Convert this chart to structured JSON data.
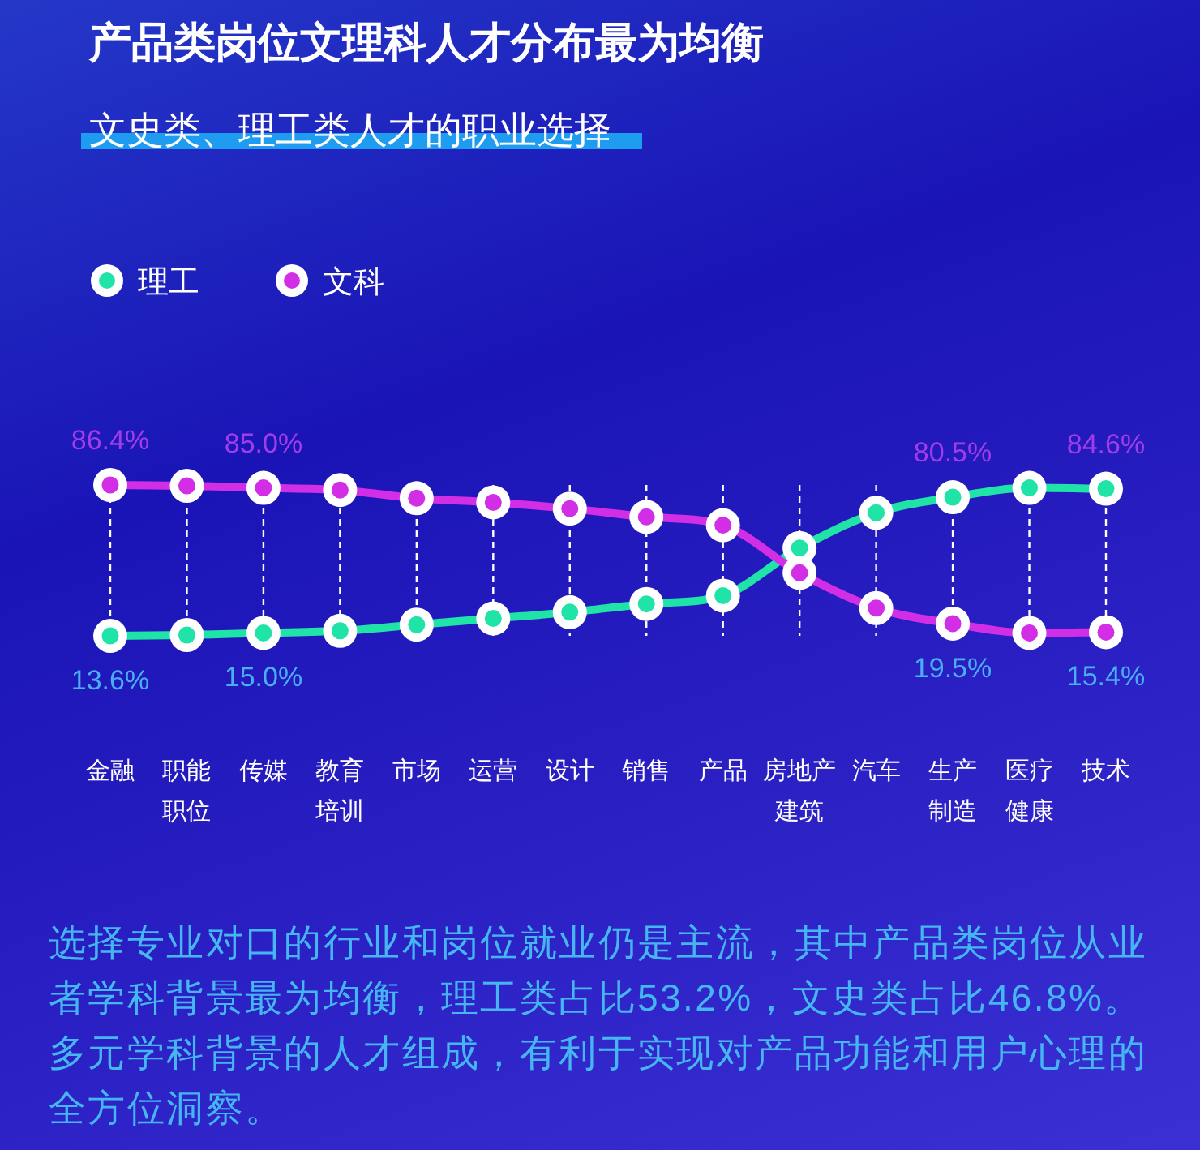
{
  "chart_data": {
    "type": "line",
    "title": "产品类岗位文理科人才分布最为均衡",
    "subtitle": "文史类、理工类人才的职业选择",
    "categories": [
      "金融",
      "职能职位",
      "传媒",
      "教育培训",
      "市场",
      "运营",
      "设计",
      "销售",
      "产品",
      "房地产建筑",
      "汽车",
      "生产制造",
      "医疗健康",
      "技术"
    ],
    "series": [
      {
        "name": "理工",
        "color": "#1fe3a7",
        "values": [
          13.6,
          14,
          15.0,
          16,
          19,
          22,
          25,
          29,
          33,
          56,
          73,
          80.5,
          85,
          84.6
        ],
        "value_labels": [
          "13.6%",
          null,
          "15.0%",
          null,
          null,
          null,
          null,
          null,
          null,
          null,
          null,
          "80.5%",
          null,
          "84.6%"
        ]
      },
      {
        "name": "文科",
        "color": "#d12ee6",
        "values": [
          86.4,
          86,
          85.0,
          84,
          80,
          78,
          75,
          71,
          67,
          44,
          27,
          19.5,
          15,
          15.4
        ],
        "value_labels": [
          "86.4%",
          null,
          "85.0%",
          null,
          null,
          null,
          null,
          null,
          null,
          null,
          null,
          "19.5%",
          null,
          "15.4%"
        ]
      }
    ],
    "legend": "top left",
    "marker": "circle",
    "grid": "x",
    "annotations": [
      "选择专业对口的行业和岗位就业仍是主流，其中产品类岗位从业者学科背景最为均衡，理工类占比53.2%，文史类占比46.8%。多元学科背景的人才组成，有利于实现对产品功能和用户心理的全方位洞察。"
    ]
  }
}
